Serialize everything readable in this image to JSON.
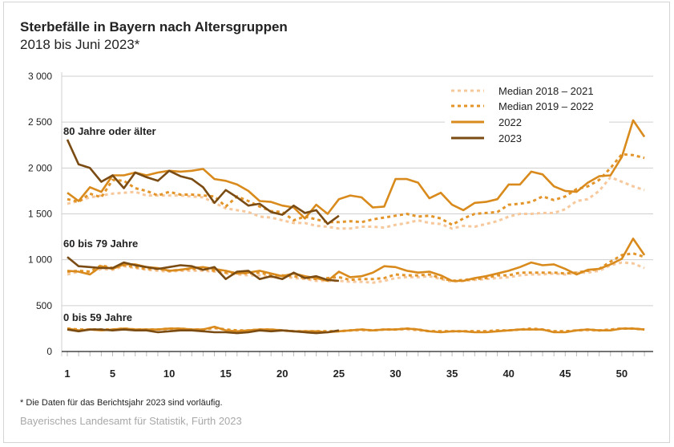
{
  "title": "Sterbefälle in Bayern nach Altersgruppen",
  "subtitle": "2018 bis Juni 2023*",
  "footnote": "*   Die Daten für das Berichtsjahr 2023 sind vorläufig.",
  "source": "Bayerisches Landesamt für Statistik, Fürth 2023",
  "chart_data": {
    "type": "line",
    "title": "Sterbefälle in Bayern nach Altersgruppen",
    "xlabel": "",
    "ylabel": "",
    "ylim": [
      0,
      3000
    ],
    "xlim": [
      1,
      52
    ],
    "yticks": [
      0,
      500,
      1000,
      1500,
      2000,
      2500,
      3000
    ],
    "ytick_labels": [
      "0",
      "500",
      "1 000",
      "1 500",
      "2 000",
      "2 500",
      "3 000"
    ],
    "xticks": [
      1,
      5,
      10,
      15,
      20,
      25,
      30,
      35,
      40,
      45,
      50
    ],
    "xtick_labels": [
      "1",
      "5",
      "10",
      "15",
      "20",
      "25",
      "30",
      "35",
      "40",
      "45",
      "50"
    ],
    "grid": "horizontal",
    "legend_position": "top-right",
    "legend": [
      {
        "key": "m1821",
        "label": "Median 2018 – 2021",
        "color": "#f6c89c",
        "style": "dotted"
      },
      {
        "key": "m1922",
        "label": "Median 2019 – 2022",
        "color": "#e3952a",
        "style": "dotted"
      },
      {
        "key": "y2022",
        "label": "2022",
        "color": "#d98a1c",
        "style": "solid"
      },
      {
        "key": "y2023",
        "label": "2023",
        "color": "#7a4b12",
        "style": "solid"
      }
    ],
    "groups": [
      {
        "label": "80 Jahre oder älter",
        "m1821": [
          1610,
          1640,
          1680,
          1700,
          1720,
          1730,
          1740,
          1700,
          1700,
          1700,
          1700,
          1690,
          1680,
          1620,
          1560,
          1540,
          1520,
          1470,
          1460,
          1430,
          1400,
          1400,
          1370,
          1360,
          1340,
          1340,
          1360,
          1360,
          1350,
          1380,
          1400,
          1430,
          1400,
          1390,
          1340,
          1370,
          1360,
          1390,
          1420,
          1470,
          1500,
          1500,
          1510,
          1510,
          1550,
          1640,
          1660,
          1750,
          1900,
          1850,
          1800,
          1760
        ],
        "m1922": [
          1660,
          1630,
          1720,
          1680,
          1870,
          1860,
          1780,
          1750,
          1700,
          1740,
          1710,
          1710,
          1700,
          1690,
          1580,
          1690,
          1640,
          1580,
          1530,
          1520,
          1430,
          1470,
          1440,
          1410,
          1410,
          1420,
          1410,
          1440,
          1460,
          1480,
          1500,
          1470,
          1480,
          1450,
          1380,
          1450,
          1500,
          1510,
          1520,
          1600,
          1610,
          1630,
          1690,
          1650,
          1690,
          1770,
          1800,
          1870,
          2000,
          2150,
          2140,
          2110
        ],
        "y2022": [
          1730,
          1640,
          1790,
          1740,
          1920,
          1920,
          1950,
          1920,
          1950,
          1970,
          1960,
          1970,
          1990,
          1880,
          1860,
          1820,
          1750,
          1640,
          1630,
          1590,
          1570,
          1450,
          1600,
          1500,
          1660,
          1700,
          1680,
          1570,
          1580,
          1880,
          1880,
          1840,
          1670,
          1730,
          1600,
          1540,
          1620,
          1630,
          1660,
          1820,
          1820,
          1960,
          1930,
          1800,
          1750,
          1740,
          1840,
          1910,
          1920,
          2120,
          2520,
          2340
        ],
        "y2023": [
          2310,
          2040,
          2000,
          1850,
          1920,
          1780,
          1950,
          1900,
          1860,
          1970,
          1910,
          1880,
          1790,
          1620,
          1760,
          1680,
          1590,
          1610,
          1520,
          1490,
          1590,
          1510,
          1540,
          1390,
          1480
        ]
      },
      {
        "label": "60 bis 79 Jahre",
        "m1821": [
          840,
          870,
          860,
          900,
          890,
          930,
          910,
          890,
          880,
          870,
          880,
          880,
          880,
          870,
          850,
          840,
          830,
          830,
          810,
          820,
          800,
          790,
          770,
          770,
          770,
          760,
          760,
          750,
          770,
          800,
          810,
          810,
          820,
          790,
          760,
          770,
          780,
          790,
          800,
          810,
          830,
          840,
          840,
          850,
          840,
          860,
          860,
          880,
          940,
          970,
          960,
          910
        ],
        "m1922": [
          870,
          880,
          870,
          940,
          910,
          940,
          920,
          900,
          900,
          880,
          890,
          900,
          900,
          880,
          860,
          860,
          850,
          860,
          830,
          830,
          820,
          800,
          790,
          800,
          810,
          780,
          790,
          790,
          800,
          840,
          830,
          830,
          840,
          800,
          770,
          780,
          790,
          800,
          830,
          830,
          860,
          860,
          860,
          860,
          850,
          860,
          880,
          900,
          980,
          1050,
          1070,
          1030
        ],
        "y2022": [
          880,
          870,
          840,
          930,
          900,
          950,
          950,
          920,
          910,
          880,
          890,
          910,
          920,
          900,
          880,
          850,
          860,
          880,
          850,
          820,
          850,
          820,
          800,
          770,
          870,
          810,
          820,
          860,
          930,
          920,
          880,
          860,
          870,
          830,
          770,
          770,
          800,
          820,
          850,
          880,
          920,
          970,
          940,
          950,
          900,
          840,
          890,
          900,
          950,
          1010,
          1230,
          1050
        ],
        "y2023": [
          1030,
          930,
          920,
          910,
          910,
          970,
          940,
          920,
          900,
          920,
          940,
          930,
          890,
          920,
          790,
          870,
          880,
          790,
          820,
          790,
          860,
          800,
          820,
          780,
          770
        ]
      },
      {
        "label": "0 bis 59 Jahre",
        "m1821": [
          240,
          240,
          240,
          240,
          240,
          250,
          240,
          240,
          240,
          240,
          240,
          240,
          240,
          250,
          240,
          230,
          230,
          230,
          230,
          230,
          220,
          220,
          220,
          220,
          220,
          230,
          230,
          230,
          240,
          240,
          240,
          230,
          220,
          220,
          220,
          220,
          220,
          220,
          230,
          230,
          240,
          240,
          240,
          220,
          220,
          230,
          230,
          230,
          240,
          250,
          250,
          240
        ],
        "m1922": [
          250,
          240,
          240,
          240,
          240,
          250,
          240,
          240,
          240,
          250,
          250,
          240,
          240,
          260,
          240,
          230,
          230,
          240,
          240,
          230,
          220,
          220,
          220,
          220,
          220,
          230,
          240,
          230,
          240,
          240,
          250,
          240,
          220,
          220,
          220,
          220,
          220,
          220,
          230,
          230,
          240,
          250,
          240,
          220,
          220,
          230,
          240,
          230,
          240,
          250,
          250,
          240
        ],
        "y2022": [
          250,
          230,
          240,
          230,
          240,
          250,
          240,
          240,
          240,
          250,
          250,
          240,
          240,
          270,
          230,
          220,
          230,
          240,
          240,
          230,
          220,
          220,
          220,
          210,
          220,
          230,
          240,
          230,
          240,
          240,
          250,
          240,
          220,
          210,
          220,
          220,
          210,
          210,
          220,
          230,
          240,
          240,
          240,
          210,
          210,
          230,
          240,
          230,
          230,
          250,
          250,
          240
        ],
        "y2023": [
          240,
          220,
          240,
          240,
          230,
          240,
          230,
          230,
          210,
          220,
          230,
          230,
          220,
          210,
          210,
          200,
          210,
          230,
          220,
          230,
          220,
          210,
          200,
          210,
          230
        ]
      }
    ]
  }
}
